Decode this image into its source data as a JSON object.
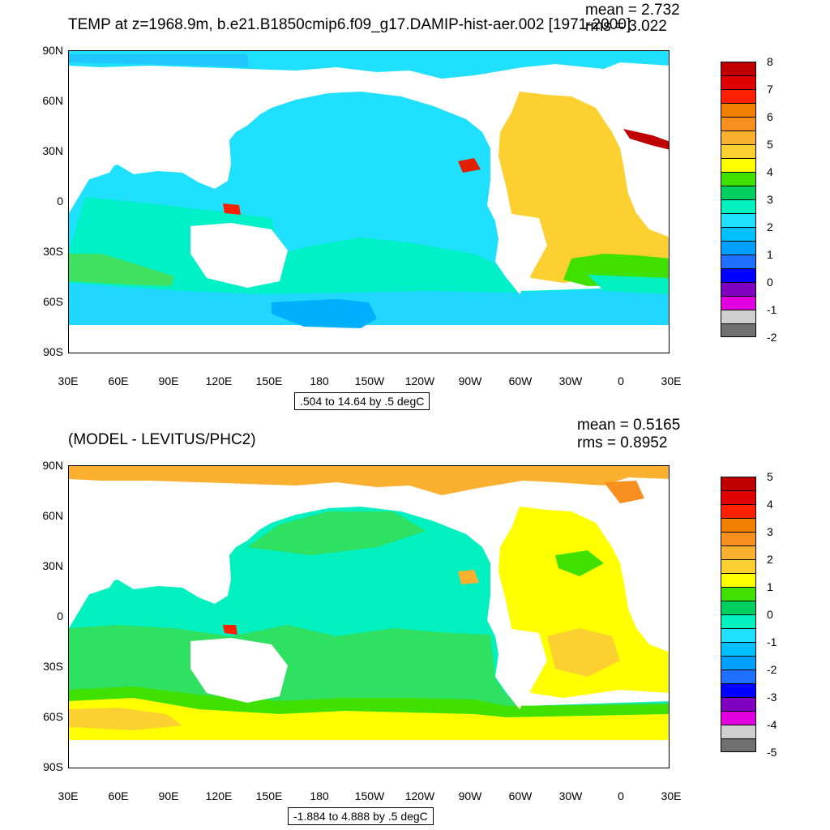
{
  "top": {
    "title": "TEMP at z=1968.9m, b.e21.B1850cmip6.f09_g17.DAMIP-hist-aer.002 [1971-2000]",
    "mean": "mean = 2.732",
    "rms": "rms = 3.022",
    "contour_info": ".504 to 14.64 by .5 degC",
    "colorbar_labels": [
      "8",
      "7",
      "6",
      "5",
      "4",
      "3",
      "2",
      "1",
      "0",
      "-1",
      "-2"
    ],
    "colorbar_colors": [
      "#c00000",
      "#e00000",
      "#ff2000",
      "#f08000",
      "#f89020",
      "#fcb030",
      "#fcd030",
      "#ffff00",
      "#40e000",
      "#00d060",
      "#00f0c0",
      "#20e0ff",
      "#00c0ff",
      "#00a0ff",
      "#2070ff",
      "#0000ff",
      "#8000c0",
      "#e000e0",
      "#d0d0d0",
      "#707070"
    ]
  },
  "bottom": {
    "title": "(MODEL - LEVITUS/PHC2)",
    "mean": "mean = 0.5165",
    "rms": "rms = 0.8952",
    "contour_info": "-1.884 to 4.888 by .5 degC",
    "colorbar_labels": [
      "5",
      "4",
      "3",
      "2",
      "1",
      "0",
      "-1",
      "-2",
      "-3",
      "-4",
      "-5"
    ],
    "colorbar_colors": [
      "#c00000",
      "#e00000",
      "#ff2000",
      "#f08000",
      "#f89020",
      "#fcb030",
      "#fcd030",
      "#ffff00",
      "#40e000",
      "#00d060",
      "#00f0c0",
      "#20e0ff",
      "#00c0ff",
      "#00a0ff",
      "#2070ff",
      "#0000ff",
      "#8000c0",
      "#e000e0",
      "#d0d0d0",
      "#707070"
    ]
  },
  "axes": {
    "lat_labels": [
      "90N",
      "60N",
      "30N",
      "0",
      "30S",
      "60S",
      "90S"
    ],
    "lon_labels": [
      "30E",
      "60E",
      "90E",
      "120E",
      "150E",
      "180",
      "150W",
      "120W",
      "90W",
      "60W",
      "30W",
      "0",
      "30E"
    ]
  },
  "colors": {
    "ocean_top_arctic": "#20d8ff",
    "ocean_top_pacific": "#20e0ff",
    "ocean_top_south": "#00f0d8",
    "ocean_top_green": "#30e060",
    "ocean_top_atlantic": "#fcd030",
    "ocean_bottom_arctic": "#fcb030",
    "ocean_bottom_pacific": "#00f0c0",
    "ocean_bottom_south": "#30e060",
    "ocean_bottom_yellow": "#ffff00",
    "ocean_bottom_atlantic": "#ffff00"
  }
}
